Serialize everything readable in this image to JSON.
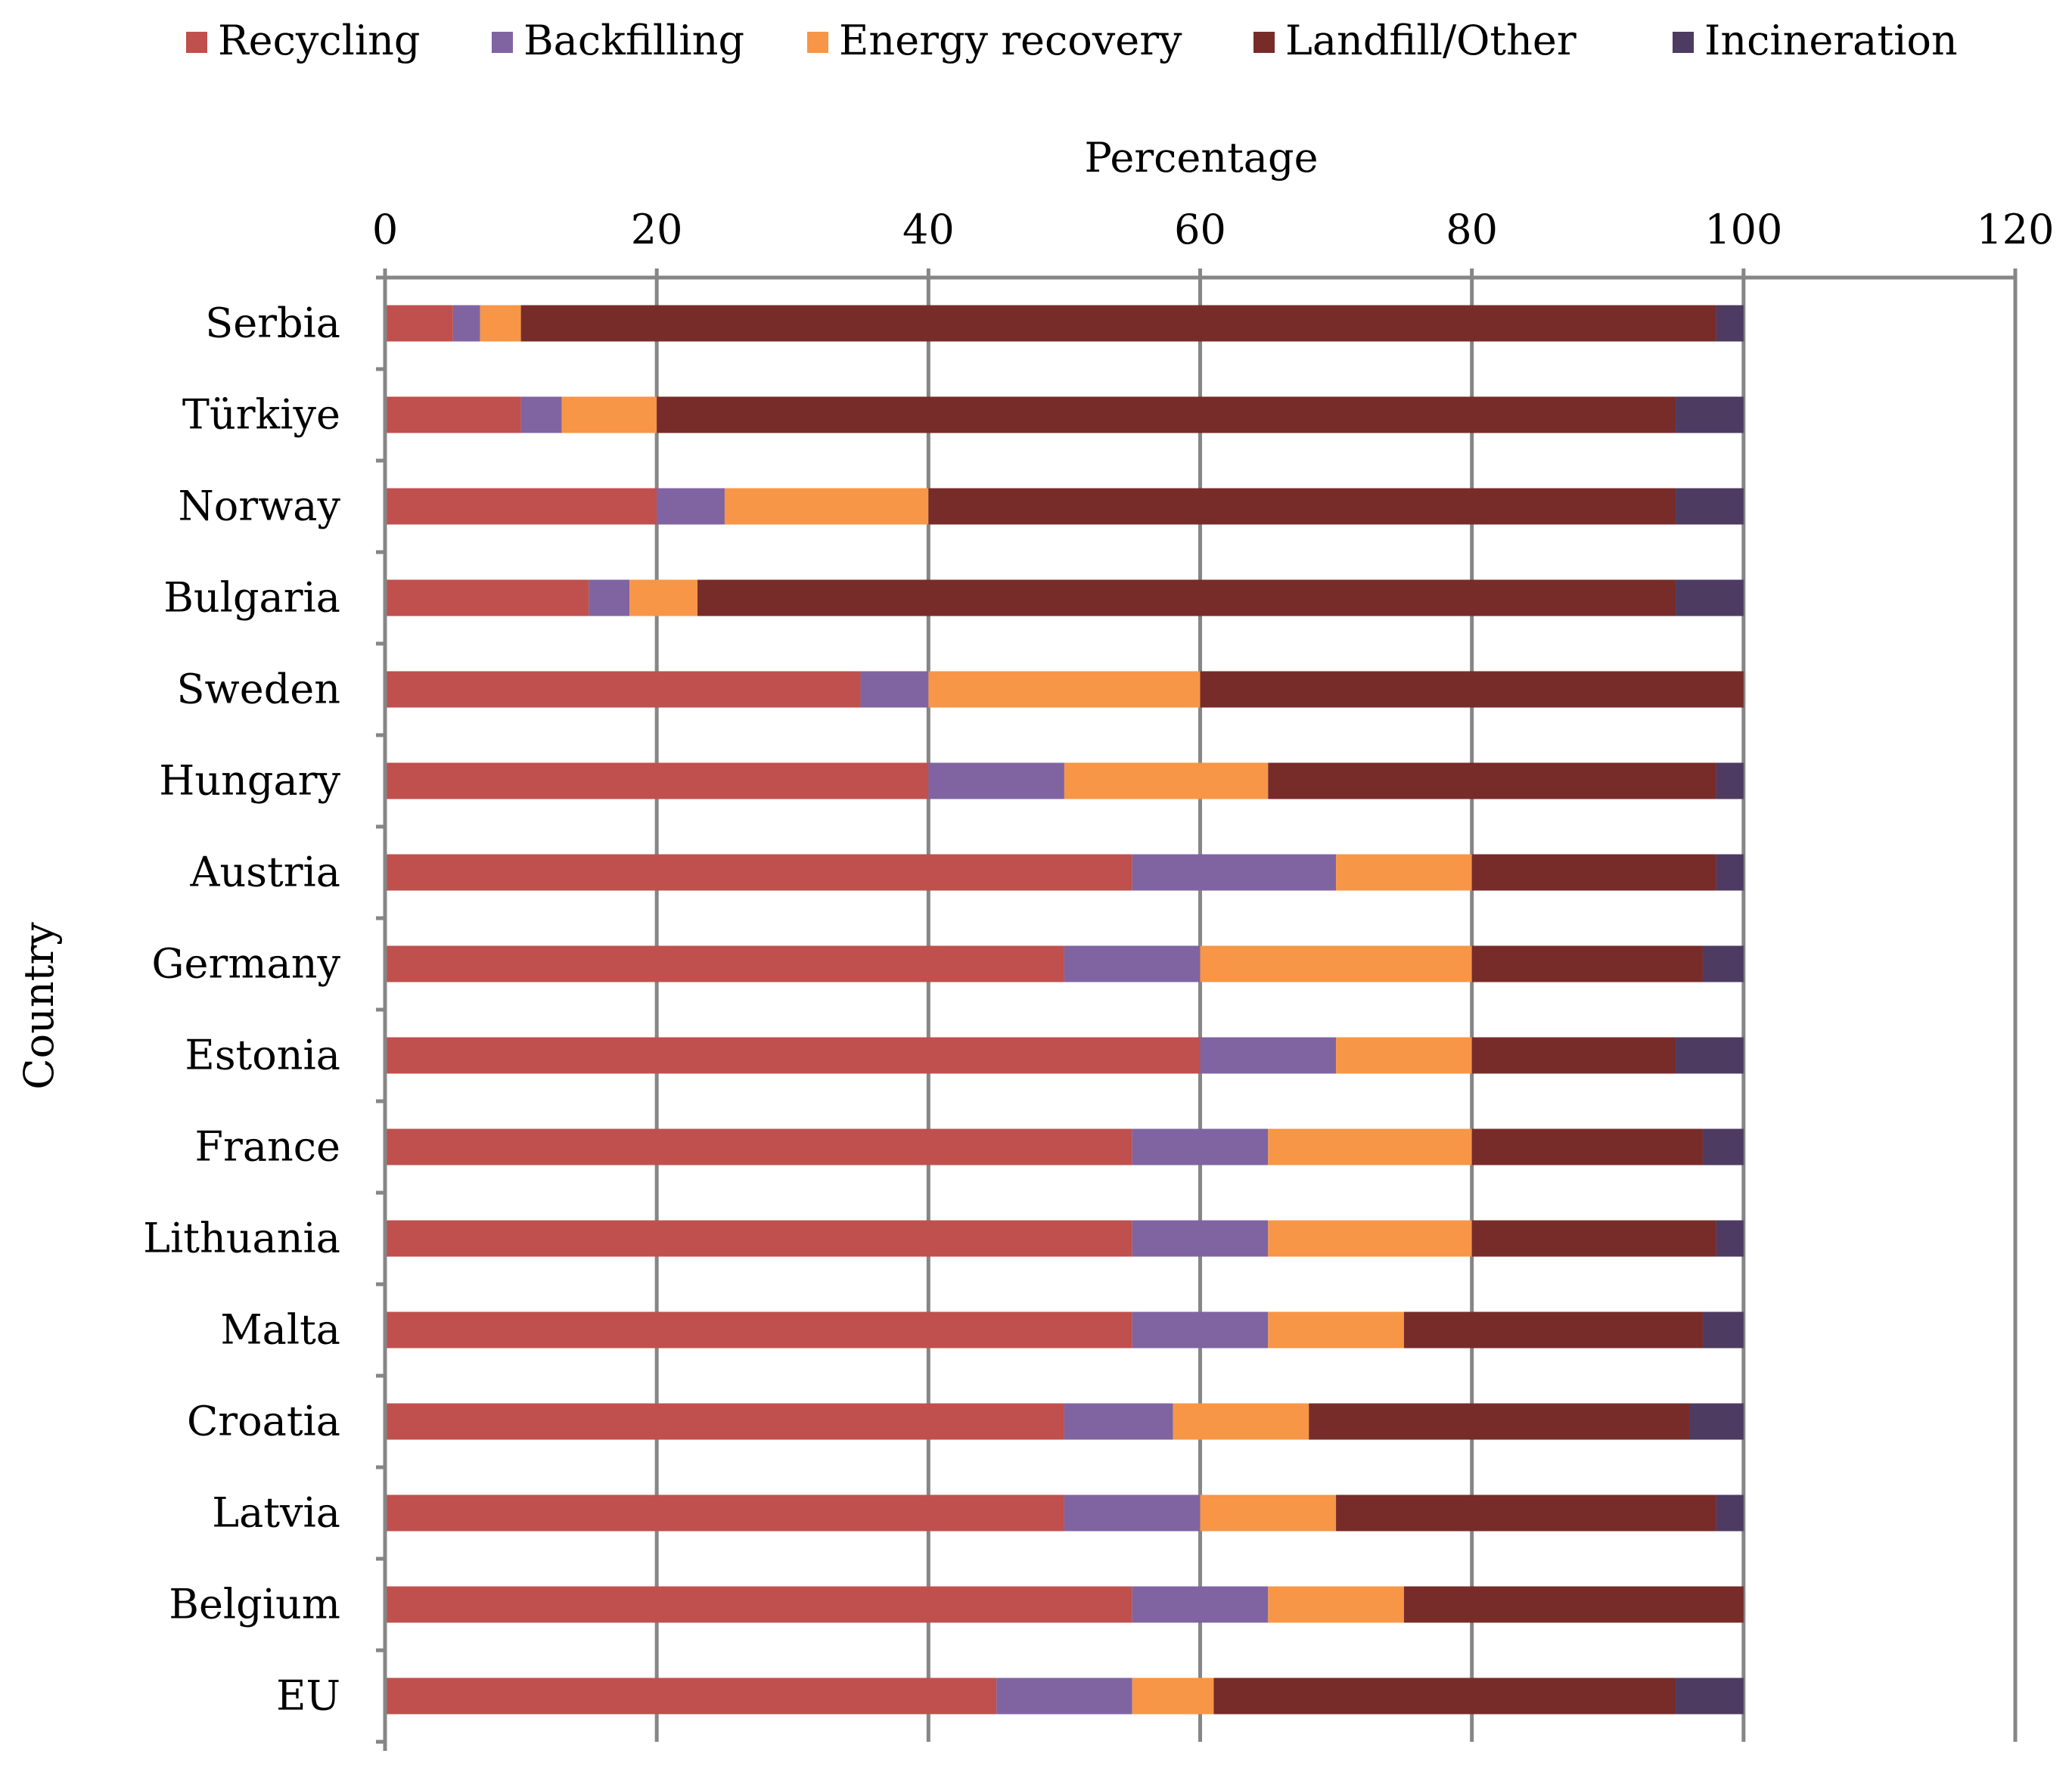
{
  "chart_data": {
    "type": "bar",
    "orientation": "horizontal",
    "stacked": true,
    "xlabel": "Percentage",
    "ylabel": "Country",
    "xlim": [
      0,
      120
    ],
    "x_ticks": [
      "0",
      "20",
      "40",
      "60",
      "80",
      "100",
      "120"
    ],
    "x_tick_values": [
      0,
      20,
      40,
      60,
      80,
      100,
      120
    ],
    "x_axis_position": "top",
    "grid": "vertical",
    "legend_position": "top",
    "categories": [
      "Serbia",
      "Türkiye",
      "Norway",
      "Bulgaria",
      "Sweden",
      "Hungary",
      "Austria",
      "Germany",
      "Estonia",
      "France",
      "Lithuania",
      "Malta",
      "Croatia",
      "Latvia",
      "Belgium",
      "EU"
    ],
    "series": [
      {
        "name": "Recycling",
        "color": "#c0504d",
        "values": [
          5,
          10,
          20,
          15,
          35,
          40,
          55,
          50,
          60,
          55,
          55,
          55,
          50,
          50,
          55,
          45
        ]
      },
      {
        "name": "Backfilling",
        "color": "#8064a2",
        "values": [
          2,
          3,
          5,
          3,
          5,
          10,
          15,
          10,
          10,
          10,
          10,
          10,
          8,
          10,
          10,
          10
        ]
      },
      {
        "name": "Energy recovery",
        "color": "#f79646",
        "values": [
          3,
          7,
          15,
          5,
          20,
          15,
          10,
          20,
          10,
          15,
          15,
          10,
          10,
          10,
          10,
          6
        ]
      },
      {
        "name": "Landfill/Other",
        "color": "#772c2a",
        "values": [
          88,
          75,
          55,
          72,
          40,
          33,
          18,
          17,
          15,
          17,
          18,
          22,
          28,
          28,
          25,
          34
        ]
      },
      {
        "name": "Incineration",
        "color": "#4d3b62",
        "values": [
          2,
          5,
          5,
          5,
          0,
          2,
          2,
          3,
          5,
          3,
          2,
          3,
          4,
          2,
          0,
          5
        ]
      }
    ]
  }
}
